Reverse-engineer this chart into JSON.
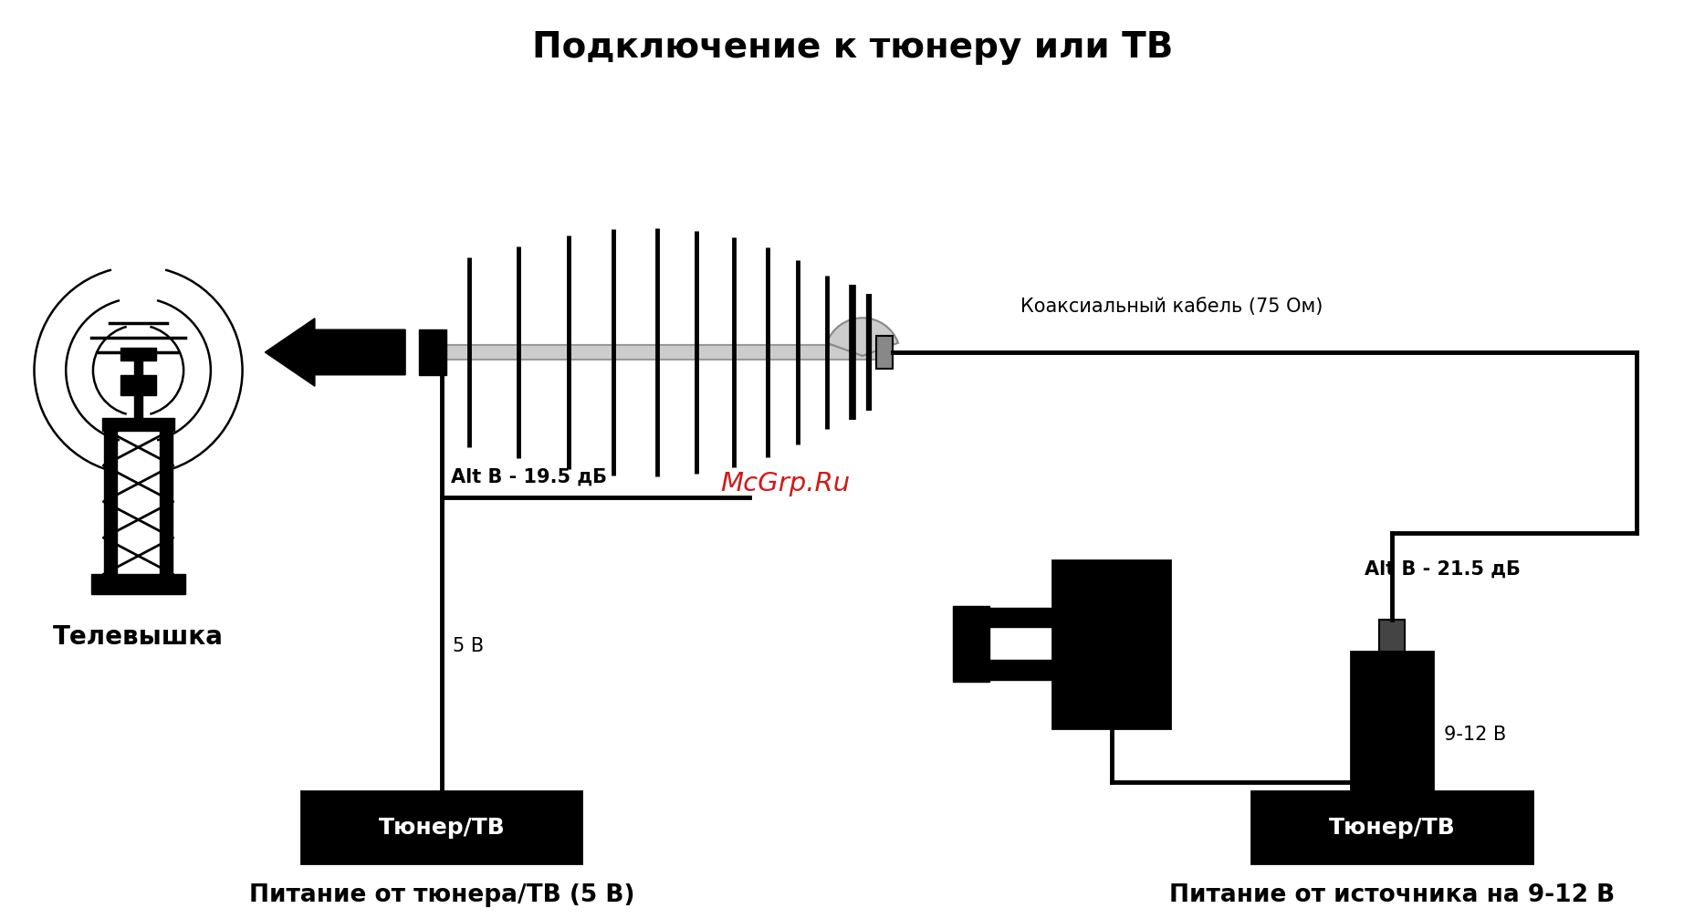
{
  "title": "Подключение к тюнеру или ТВ",
  "watermark": "McGrp.Ru",
  "watermark_color": "#cc0000",
  "bg_color": "#ffffff",
  "label_tower": "Телевышка",
  "label_coax": "Коаксиальный кабель (75 Ом)",
  "label_left_gain": "Alt B - 19.5 дБ",
  "label_left_voltage": "5 В",
  "label_left_tuner": "Тюнер/ТВ",
  "label_left_caption": "Питание от тюнера/ТВ (5 В)",
  "label_right_gain": "Alt B - 21.5 дБ",
  "label_right_voltage": "9-12 В",
  "label_right_tuner": "Тюнер/ТВ",
  "label_right_caption": "Питание от источника на 9-12 В"
}
